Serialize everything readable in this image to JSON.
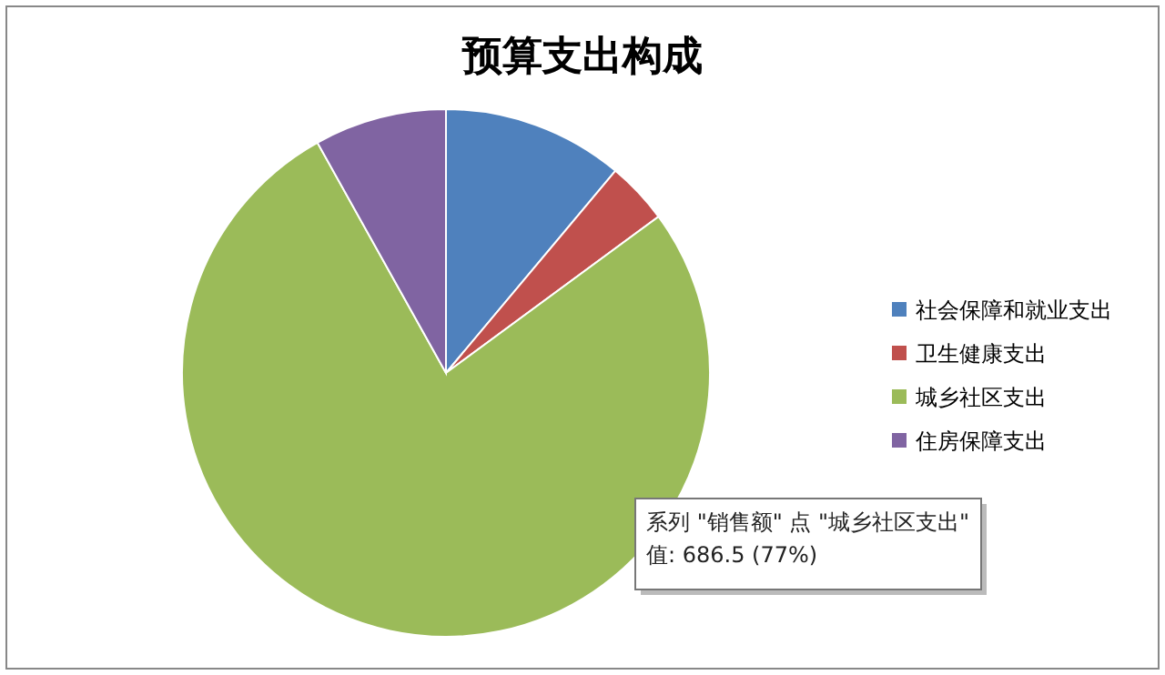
{
  "chart_data": {
    "type": "pie",
    "title": "预算支出构成",
    "categories": [
      "社会保障和就业支出",
      "卫生健康支出",
      "城乡社区支出",
      "住房保障支出"
    ],
    "values": [
      11.1,
      3.8,
      77.0,
      8.1
    ],
    "colors": [
      "#4f81bd",
      "#c0504d",
      "#9bbb59",
      "#8064a2"
    ],
    "legend": "right",
    "annotations": [
      "系列 \"销售额\" 点 \"城乡社区支出\"",
      "值: 686.5 (77%)"
    ]
  }
}
